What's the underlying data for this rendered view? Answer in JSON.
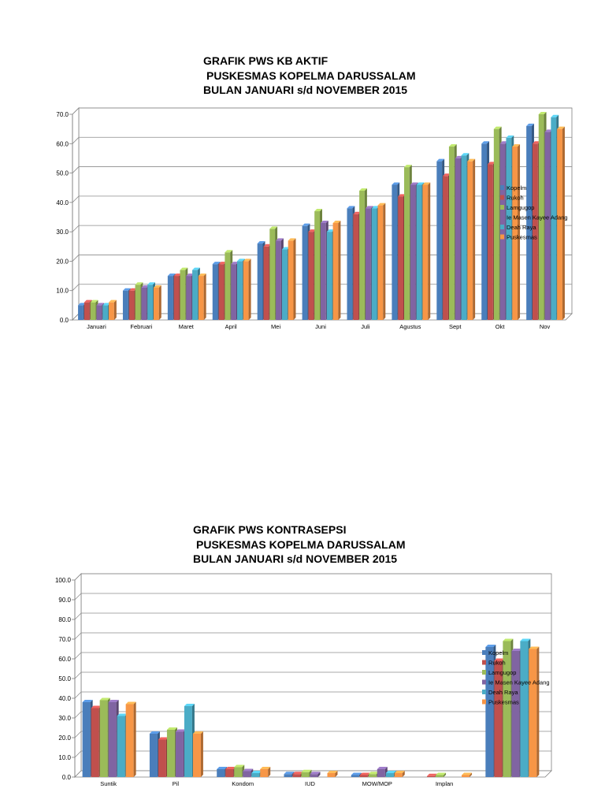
{
  "chart_data": [
    {
      "type": "bar",
      "title_lines": [
        "GRAFIK PWS KB AKTIF",
        "PUSKESMAS KOPELMA DARUSSALAM",
        "BULAN JANUARI s/d NOVEMBER 2015"
      ],
      "categories": [
        "Januari",
        "Februari",
        "Maret",
        "April",
        "Mei",
        "Juni",
        "Juli",
        "Agustus",
        "Sept",
        "Okt",
        "Nov"
      ],
      "ylim": [
        0,
        70
      ],
      "yticks": [
        "0.0",
        "10.0",
        "20.0",
        "30.0",
        "40.0",
        "50.0",
        "60.0",
        "70.0"
      ],
      "grid": true,
      "legend_position": "right",
      "series": [
        {
          "name": "Kopelm",
          "color": "#4a7ebb",
          "values": [
            5,
            10,
            15,
            19,
            26,
            32,
            38,
            46,
            54,
            60,
            66
          ]
        },
        {
          "name": "Rukoh",
          "color": "#c0504d",
          "values": [
            6,
            10,
            15,
            19,
            25,
            30,
            36,
            42,
            49,
            53,
            60
          ]
        },
        {
          "name": "Lamgugop",
          "color": "#9bbb59",
          "values": [
            6,
            12,
            17,
            23,
            31,
            37,
            44,
            52,
            59,
            65,
            70
          ]
        },
        {
          "name": "Ie Masen Kayee Adang",
          "color": "#8064a2",
          "values": [
            5,
            11,
            15,
            19,
            27,
            33,
            38,
            46,
            55,
            60,
            64
          ]
        },
        {
          "name": "Deah Raya",
          "color": "#4bacc6",
          "values": [
            5,
            12,
            17,
            20,
            24,
            30,
            38,
            46,
            56,
            62,
            69
          ]
        },
        {
          "name": "Puskesmas",
          "color": "#f79646",
          "values": [
            6,
            11,
            15,
            20,
            27,
            33,
            39,
            46,
            54,
            59,
            65
          ]
        }
      ]
    },
    {
      "type": "bar",
      "title_lines": [
        "GRAFIK PWS KONTRASEPSI",
        "PUSKESMAS KOPELMA DARUSSALAM",
        "BULAN JANUARI s/d NOVEMBER 2015"
      ],
      "categories": [
        "Suntik",
        "Pil",
        "Kondom",
        "IUD",
        "MOW/MOP",
        "Implan",
        ""
      ],
      "ylim": [
        0,
        100
      ],
      "yticks": [
        "0.0",
        "10.0",
        "20.0",
        "30.0",
        "40.0",
        "50.0",
        "60.0",
        "70.0",
        "80.0",
        "90.0",
        "100.0"
      ],
      "grid": true,
      "legend_position": "right",
      "series": [
        {
          "name": "Kopelm",
          "color": "#4a7ebb",
          "values": [
            38,
            22,
            4,
            1.5,
            1,
            0,
            66
          ]
        },
        {
          "name": "Rukoh",
          "color": "#c0504d",
          "values": [
            35,
            19,
            4,
            1.5,
            1,
            0.5,
            59
          ]
        },
        {
          "name": "Lamgugop",
          "color": "#9bbb59",
          "values": [
            39,
            24,
            5,
            2.5,
            1.5,
            1,
            69
          ]
        },
        {
          "name": "Ie Masen Kayee Adang",
          "color": "#8064a2",
          "values": [
            38,
            23,
            3,
            1.5,
            4,
            0,
            64
          ]
        },
        {
          "name": "Deah Raya",
          "color": "#4bacc6",
          "values": [
            31,
            36,
            2,
            0,
            2,
            0,
            69
          ]
        },
        {
          "name": "Puskesmas",
          "color": "#f79646",
          "values": [
            37,
            22,
            4,
            2,
            2,
            1,
            65
          ]
        }
      ]
    }
  ]
}
